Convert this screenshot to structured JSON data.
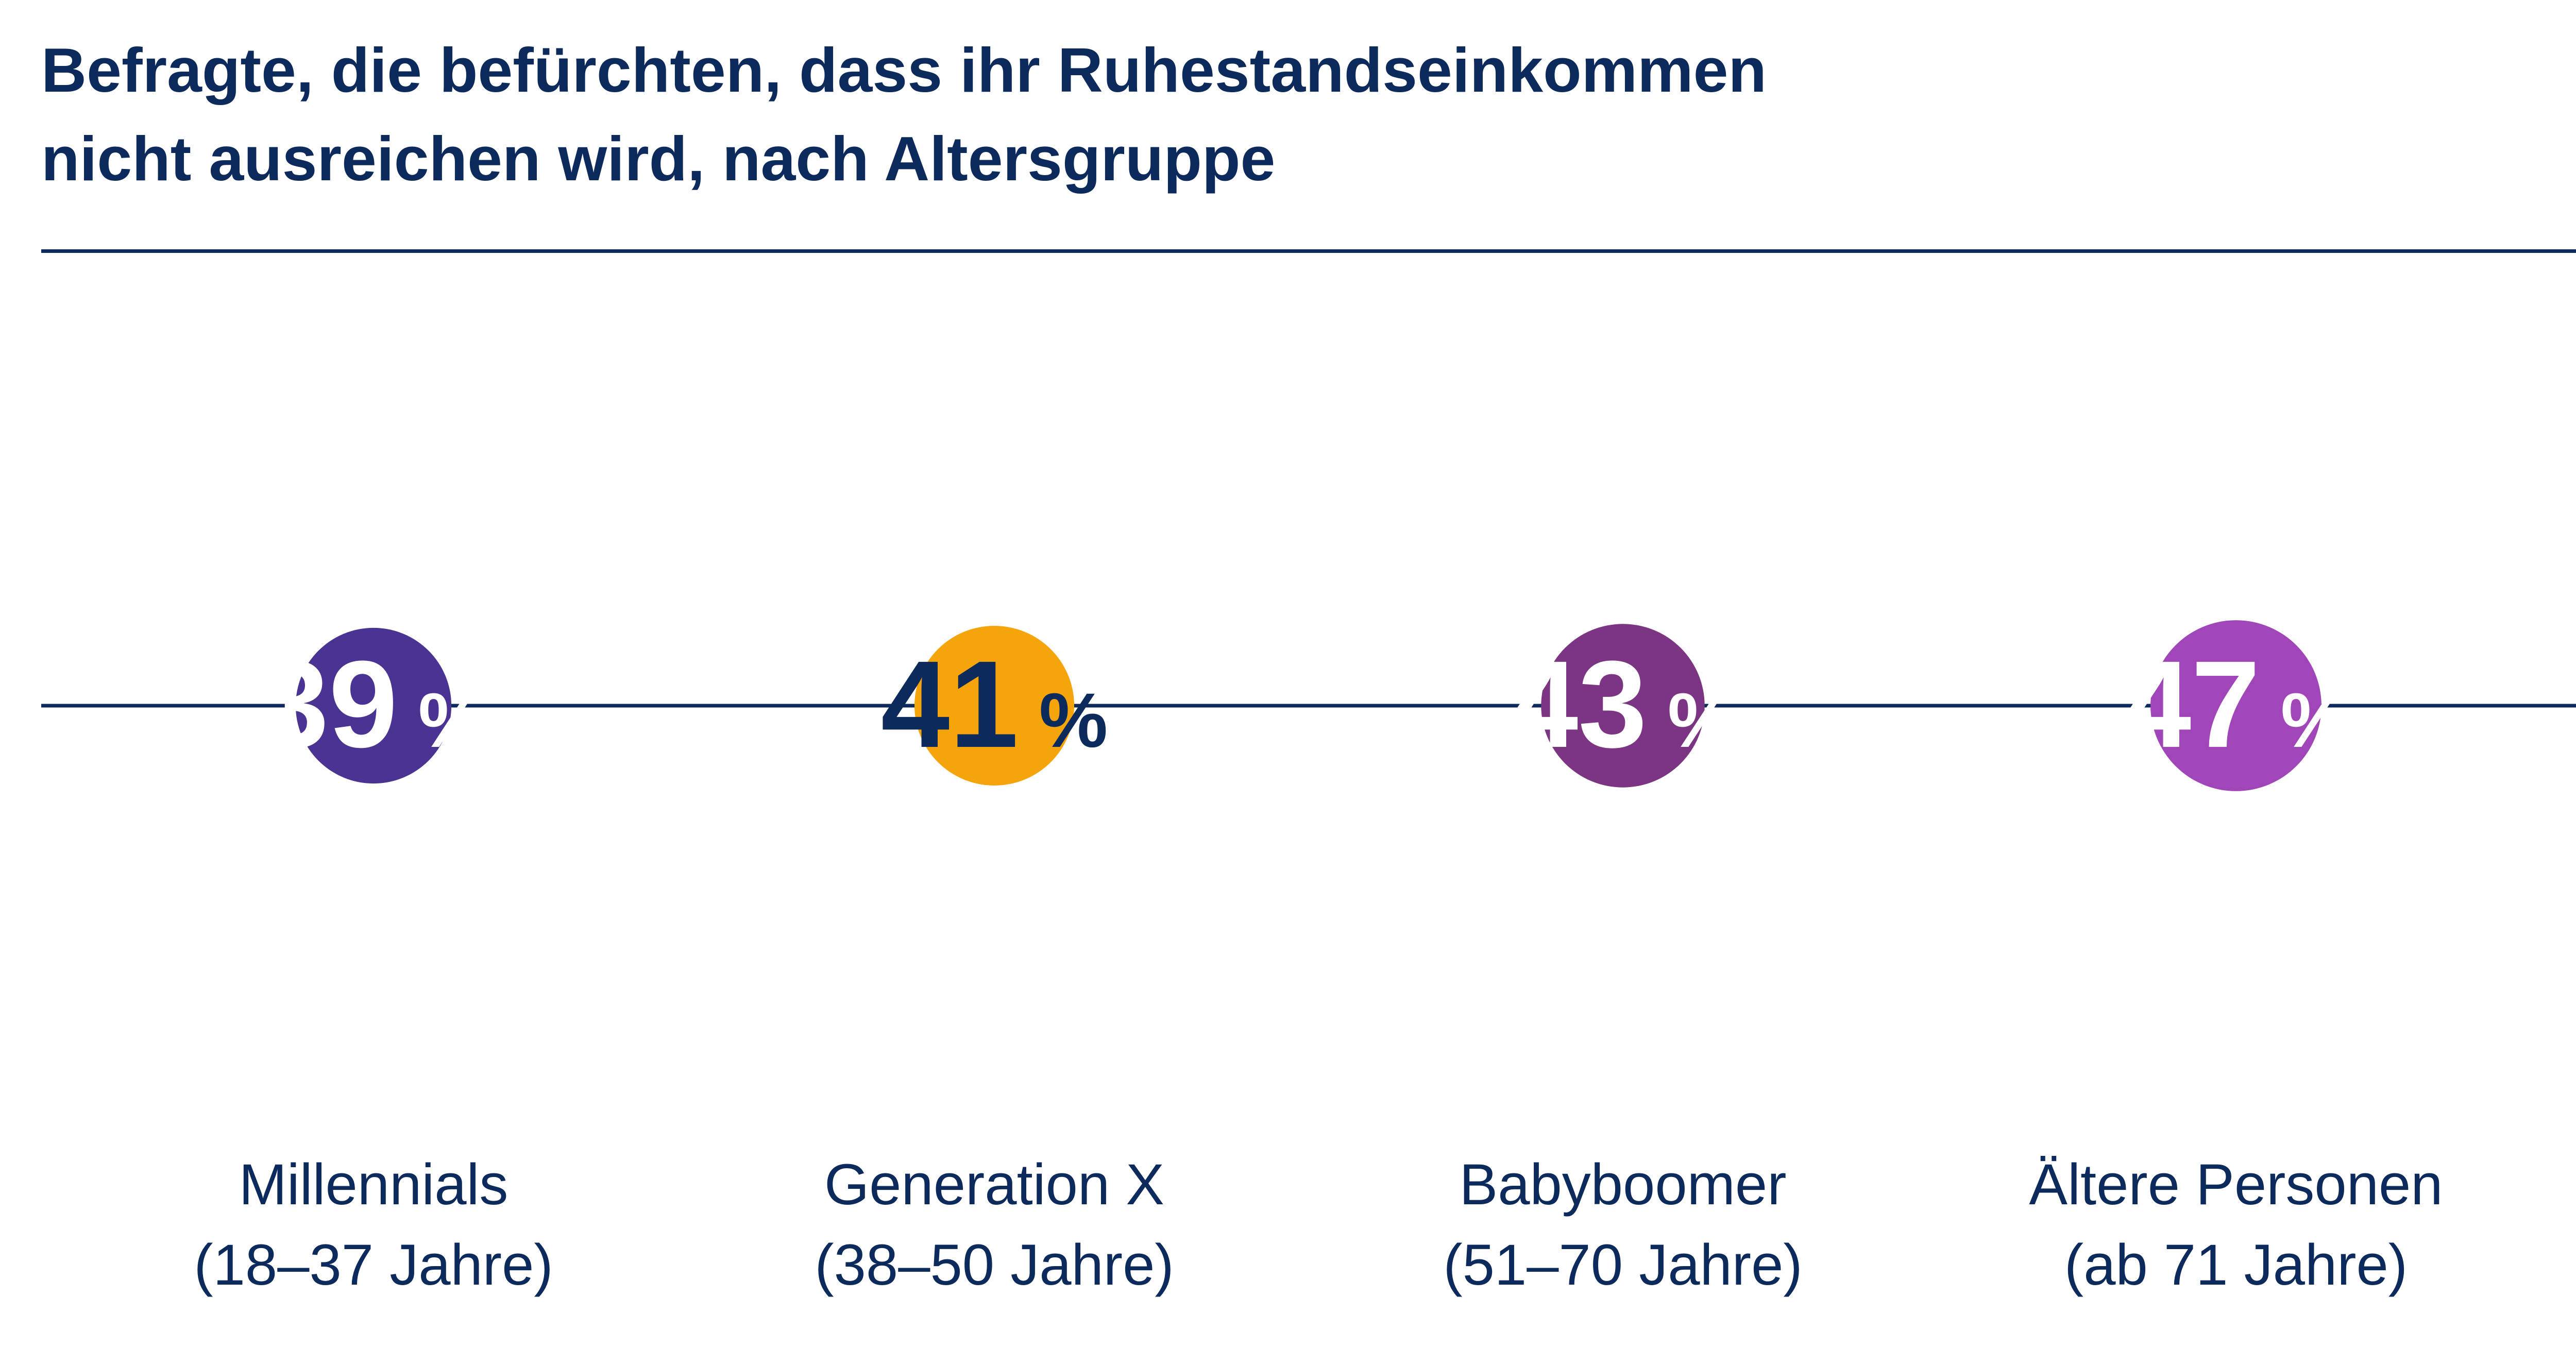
{
  "title_lines": [
    "Befragte, die befürchten, dass ihr Ruhestandseinkommen",
    "nicht ausreichen wird, nach Altersgruppe"
  ],
  "chart_data": {
    "type": "bubble",
    "title": "Befragte, die befürchten, dass ihr Ruhestandseinkommen nicht ausreichen wird, nach Altersgruppe",
    "unit": "%",
    "categories": [
      "Millennials",
      "Generation X",
      "Babyboomer",
      "Ältere Personen"
    ],
    "subcategories": [
      "(18–37 Jahre)",
      "(38–50 Jahre)",
      "(51–70 Jahre)",
      "(ab 71 Jahre)"
    ],
    "values": [
      39,
      41,
      43,
      47
    ],
    "value_labels": [
      "39",
      "41",
      "43",
      "47"
    ],
    "colors": [
      "#4b3393",
      "#f5a50b",
      "#7b3583",
      "#a046b8"
    ],
    "value_text_colors": [
      "#ffffff",
      "#0d2a5c",
      "#ffffff",
      "#ffffff"
    ],
    "line_color": "#0d2a5c"
  }
}
